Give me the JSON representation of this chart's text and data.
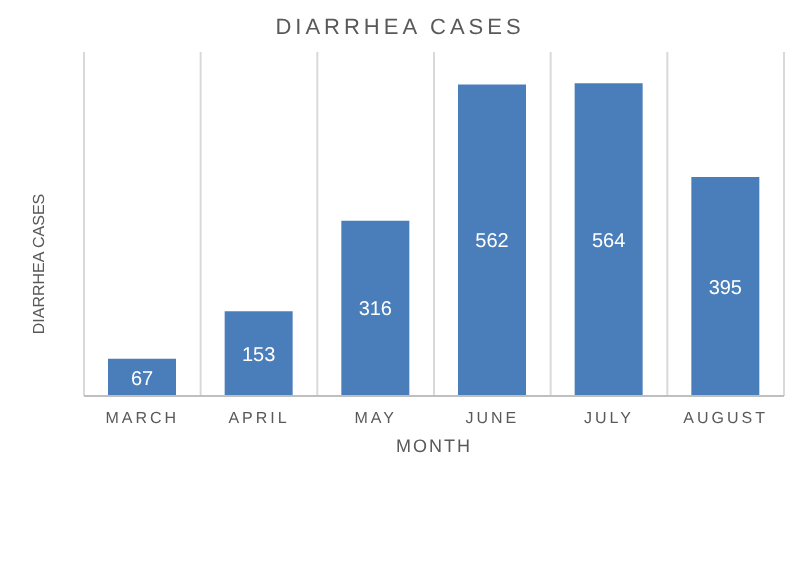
{
  "chart_data": {
    "type": "bar",
    "title": "DIARRHEA CASES",
    "xlabel": "MONTH",
    "ylabel": "DIARRHEA CASES",
    "categories": [
      "MARCH",
      "APRIL",
      "MAY",
      "JUNE",
      "JULY",
      "AUGUST"
    ],
    "values": [
      67,
      153,
      316,
      562,
      564,
      395
    ],
    "color": "#4a7ebb",
    "data_labels": true,
    "grid": "x"
  }
}
